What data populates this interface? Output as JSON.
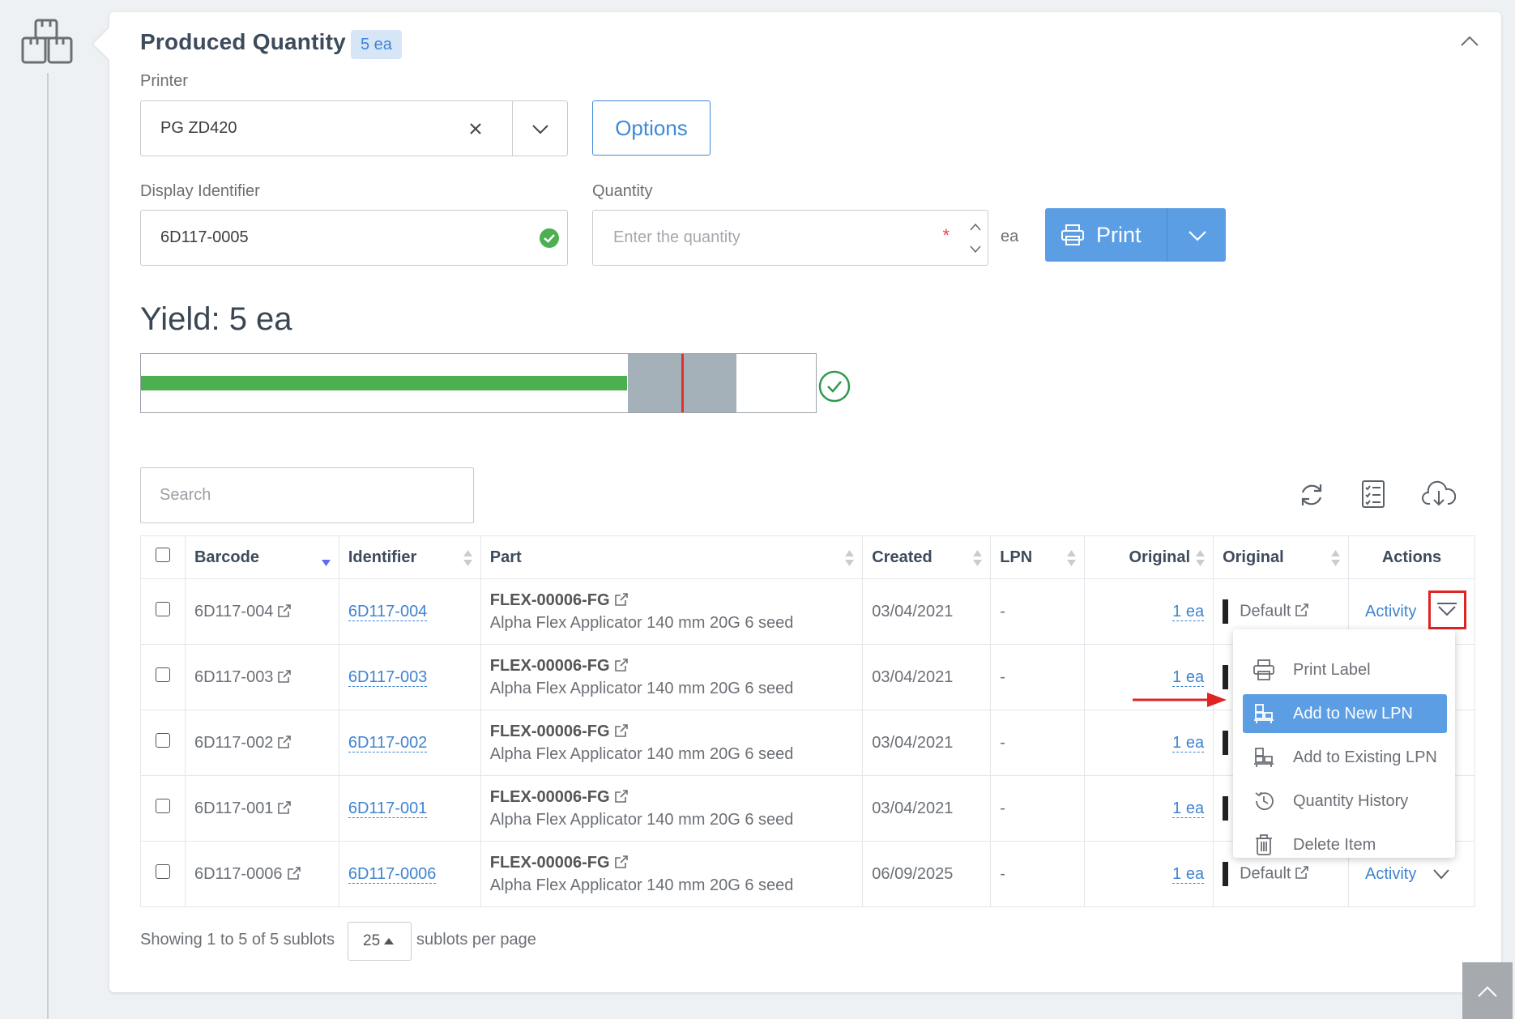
{
  "section": {
    "title": "Produced Quantity",
    "badge": "5 ea"
  },
  "printer": {
    "label": "Printer",
    "value": "PG ZD420"
  },
  "options_button": "Options",
  "display_identifier": {
    "label": "Display Identifier",
    "value": "6D117-0005"
  },
  "quantity": {
    "label": "Quantity",
    "placeholder": "Enter the quantity",
    "required_mark": "*",
    "unit": "ea"
  },
  "print_button": "Print",
  "yield": {
    "text": "Yield: 5 ea",
    "progress_fraction": 0.72
  },
  "search": {
    "placeholder": "Search"
  },
  "toolbar_icons": [
    "refresh-icon",
    "checklist-icon",
    "cloud-download-icon"
  ],
  "table": {
    "columns": [
      "Barcode",
      "Identifier",
      "Part",
      "Created",
      "LPN",
      "Original",
      "Original",
      "Actions"
    ],
    "rows": [
      {
        "barcode": "6D117-004",
        "identifier": "6D117-004",
        "part_code": "FLEX-00006-FG",
        "part_desc": "Alpha Flex Applicator 140 mm 20G 6 seed",
        "created": "03/04/2021",
        "lpn": "-",
        "qty": "1 ea",
        "location": "Default",
        "action": "Activity"
      },
      {
        "barcode": "6D117-003",
        "identifier": "6D117-003",
        "part_code": "FLEX-00006-FG",
        "part_desc": "Alpha Flex Applicator 140 mm 20G 6 seed",
        "created": "03/04/2021",
        "lpn": "-",
        "qty": "1 ea",
        "location": "",
        "action": ""
      },
      {
        "barcode": "6D117-002",
        "identifier": "6D117-002",
        "part_code": "FLEX-00006-FG",
        "part_desc": "Alpha Flex Applicator 140 mm 20G 6 seed",
        "created": "03/04/2021",
        "lpn": "-",
        "qty": "1 ea",
        "location": "",
        "action": ""
      },
      {
        "barcode": "6D117-001",
        "identifier": "6D117-001",
        "part_code": "FLEX-00006-FG",
        "part_desc": "Alpha Flex Applicator 140 mm 20G 6 seed",
        "created": "03/04/2021",
        "lpn": "-",
        "qty": "1 ea",
        "location": "",
        "action": ""
      },
      {
        "barcode": "6D117-0006",
        "identifier": "6D117-0006",
        "part_code": "FLEX-00006-FG",
        "part_desc": "Alpha Flex Applicator 140 mm 20G 6 seed",
        "created": "06/09/2025",
        "lpn": "-",
        "qty": "1 ea",
        "location": "Default",
        "action": "Activity"
      }
    ]
  },
  "menu": {
    "items": [
      {
        "label": "Print Label",
        "icon": "printer-icon"
      },
      {
        "label": "Add to New LPN",
        "icon": "pallet-icon"
      },
      {
        "label": "Add to Existing LPN",
        "icon": "pallet-icon"
      },
      {
        "label": "Quantity History",
        "icon": "history-icon"
      },
      {
        "label": "Delete Item",
        "icon": "trash-icon"
      }
    ]
  },
  "footer": {
    "showing": "Showing 1 to 5 of 5 sublots",
    "page_size": "25",
    "per_page": "sublots per page"
  },
  "colors": {
    "accent": "#5c9ee4",
    "success": "#4caf50",
    "highlight": "#e02424"
  }
}
